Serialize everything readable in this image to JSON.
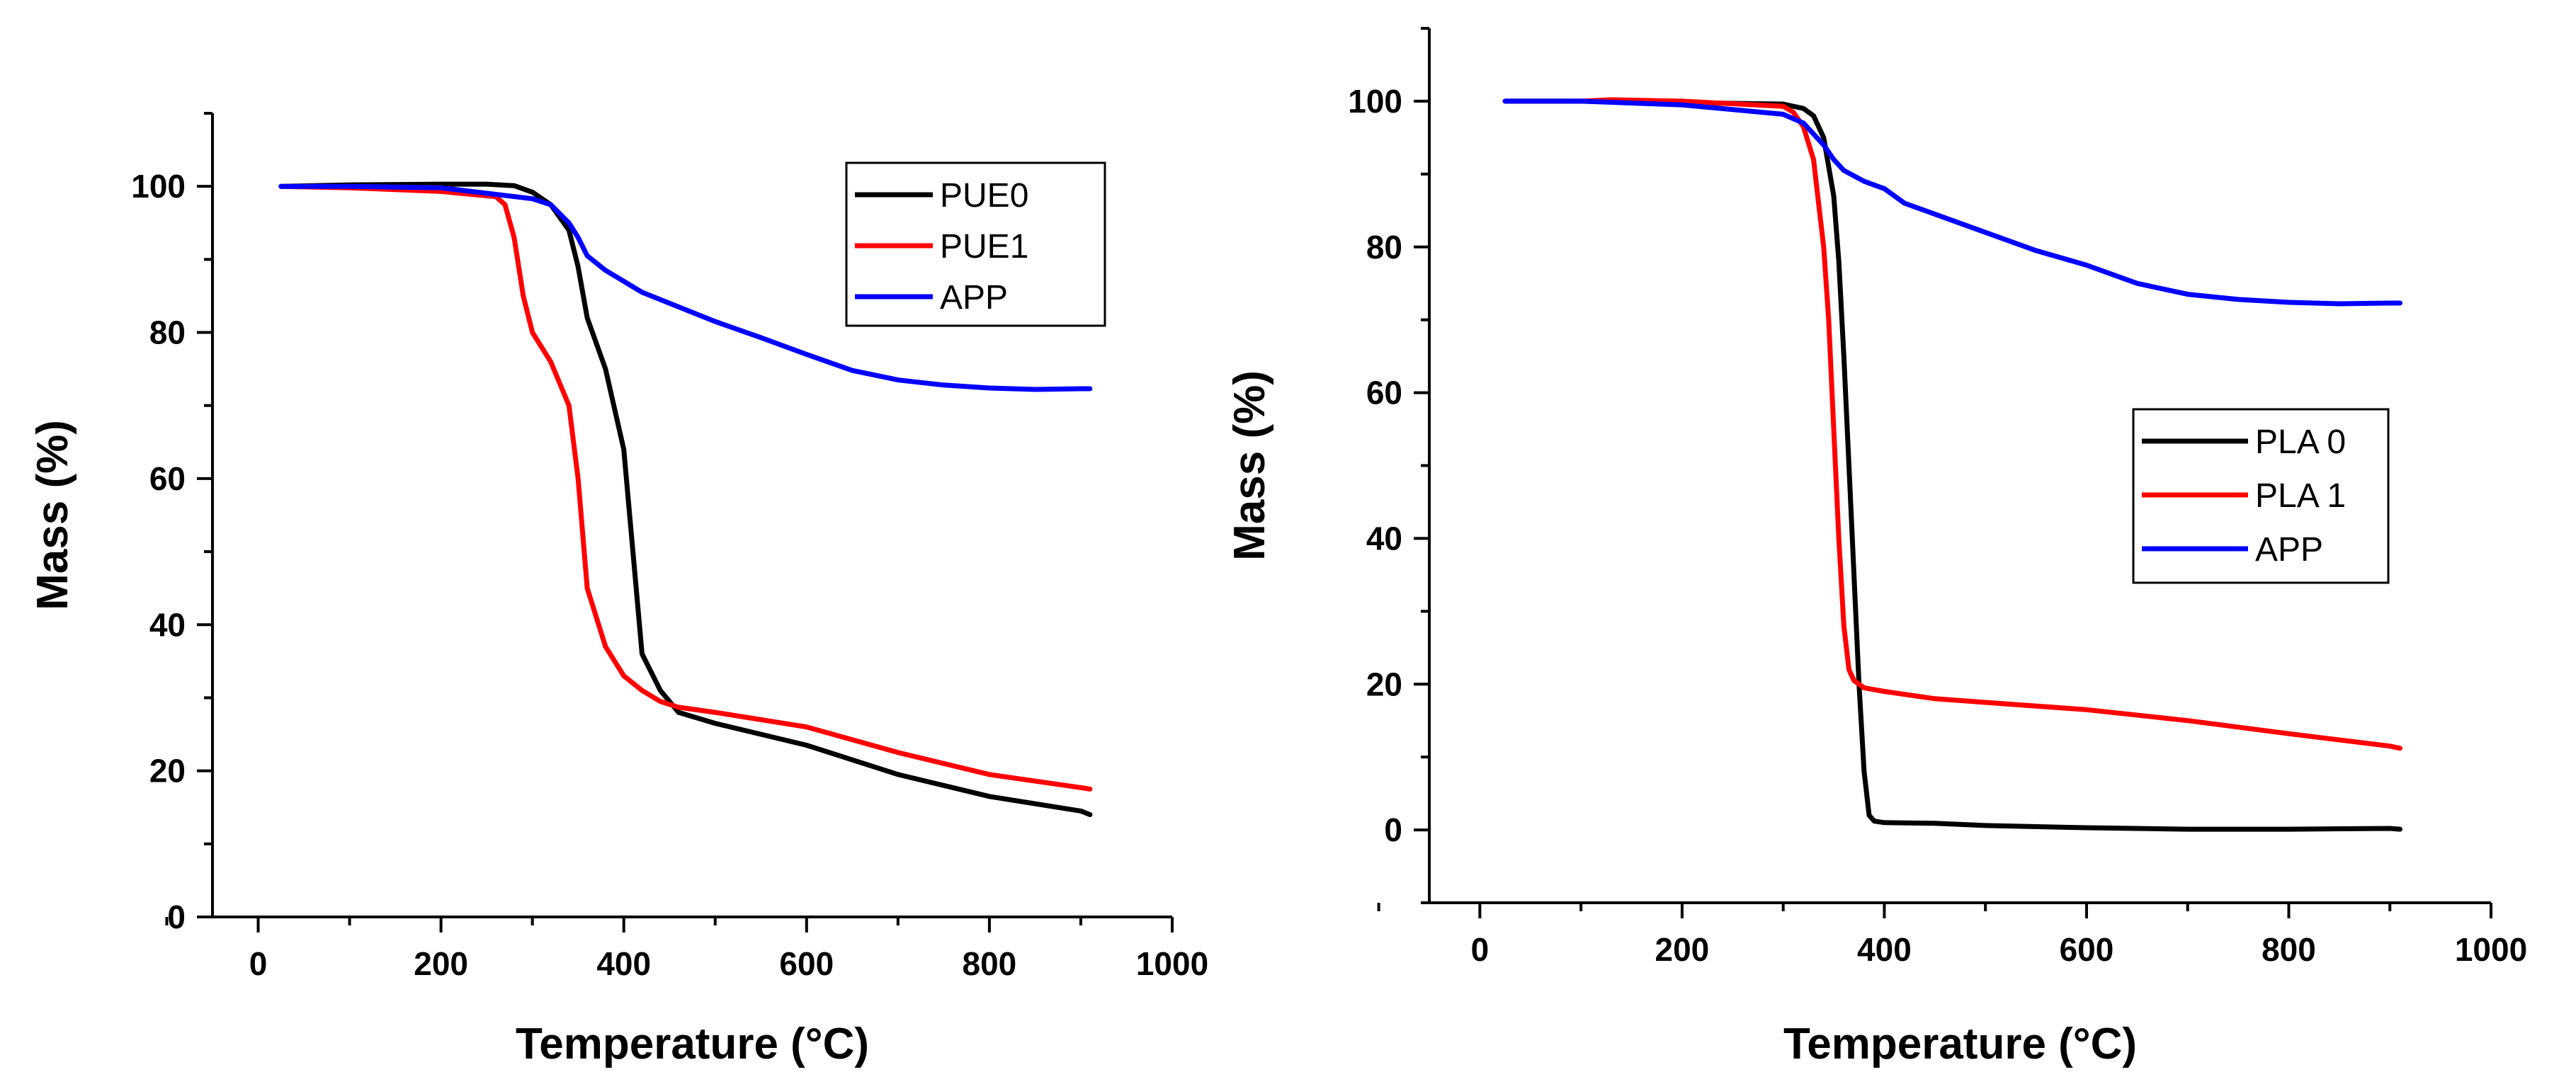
{
  "chart_data": [
    {
      "type": "line",
      "xlabel": "Temperature (°C)",
      "ylabel": "Mass (%)",
      "xlim": [
        -50,
        1000
      ],
      "ylim": [
        0,
        110
      ],
      "xticks": [
        0,
        200,
        400,
        600,
        800,
        1000
      ],
      "yticks": [
        0,
        20,
        40,
        60,
        80,
        100
      ],
      "legend_position": "top-right",
      "series": [
        {
          "name": "PUE0",
          "color": "#000000",
          "x": [
            25,
            100,
            200,
            250,
            280,
            300,
            320,
            340,
            350,
            360,
            380,
            400,
            410,
            420,
            440,
            460,
            500,
            600,
            700,
            800,
            900,
            910
          ],
          "y": [
            100,
            100.2,
            100.3,
            100.3,
            100.1,
            99.2,
            97.5,
            94,
            89,
            82,
            75,
            64,
            50,
            36,
            31,
            28,
            26.5,
            23.5,
            19.5,
            16.5,
            14.5,
            14
          ]
        },
        {
          "name": "PUE1",
          "color": "#ff0000",
          "x": [
            25,
            100,
            200,
            260,
            270,
            280,
            290,
            300,
            320,
            340,
            350,
            360,
            380,
            400,
            420,
            440,
            460,
            500,
            600,
            700,
            800,
            900,
            910
          ],
          "y": [
            100,
            99.8,
            99.3,
            98.6,
            97.5,
            93,
            85,
            80,
            76,
            70,
            60,
            45,
            37,
            33,
            31,
            29.5,
            28.7,
            28,
            26,
            22.5,
            19.5,
            17.7,
            17.5
          ]
        },
        {
          "name": "APP",
          "color": "#0000ff",
          "x": [
            25,
            100,
            200,
            300,
            320,
            340,
            350,
            360,
            380,
            400,
            420,
            450,
            500,
            550,
            600,
            650,
            700,
            750,
            800,
            850,
            900,
            910
          ],
          "y": [
            100,
            100,
            99.8,
            98.3,
            97.5,
            95,
            93,
            90.5,
            88.5,
            87,
            85.5,
            84,
            81.5,
            79.3,
            77,
            74.8,
            73.5,
            72.8,
            72.4,
            72.2,
            72.3,
            72.3
          ]
        }
      ]
    },
    {
      "type": "line",
      "xlabel": "Temperature (°C)",
      "ylabel": "Mass (%)",
      "xlim": [
        -50,
        1000
      ],
      "ylim": [
        -10,
        110
      ],
      "xticks": [
        0,
        200,
        400,
        600,
        800,
        1000
      ],
      "yticks": [
        0,
        20,
        40,
        60,
        80,
        100
      ],
      "legend_position": "center-right",
      "series": [
        {
          "name": "PLA 0",
          "color": "#000000",
          "x": [
            25,
            100,
            200,
            300,
            320,
            330,
            340,
            350,
            355,
            360,
            365,
            370,
            375,
            380,
            385,
            390,
            400,
            450,
            500,
            600,
            700,
            800,
            900,
            910
          ],
          "y": [
            100,
            100,
            99.8,
            99.6,
            99,
            98,
            95,
            87,
            78,
            65,
            50,
            35,
            20,
            8,
            2,
            1.2,
            1,
            0.9,
            0.6,
            0.3,
            0.1,
            0.1,
            0.2,
            0.1
          ]
        },
        {
          "name": "PLA 1",
          "color": "#ff0000",
          "x": [
            25,
            100,
            130,
            200,
            300,
            310,
            320,
            330,
            340,
            345,
            350,
            355,
            360,
            365,
            370,
            380,
            400,
            450,
            500,
            600,
            700,
            800,
            900,
            910
          ],
          "y": [
            100,
            100,
            100.2,
            100,
            99.3,
            98.5,
            96.5,
            92,
            80,
            70,
            55,
            40,
            28,
            22,
            20.5,
            19.5,
            19,
            18,
            17.5,
            16.5,
            15,
            13.2,
            11.5,
            11.2
          ]
        },
        {
          "name": "APP",
          "color": "#0000ff",
          "x": [
            25,
            100,
            200,
            300,
            320,
            340,
            350,
            360,
            380,
            400,
            420,
            450,
            500,
            550,
            600,
            650,
            700,
            750,
            800,
            850,
            900,
            910
          ],
          "y": [
            100,
            100,
            99.5,
            98.2,
            97,
            94,
            92,
            90.5,
            89,
            88,
            86,
            84.5,
            82,
            79.5,
            77.5,
            75,
            73.5,
            72.8,
            72.4,
            72.2,
            72.3,
            72.3
          ]
        }
      ]
    }
  ]
}
